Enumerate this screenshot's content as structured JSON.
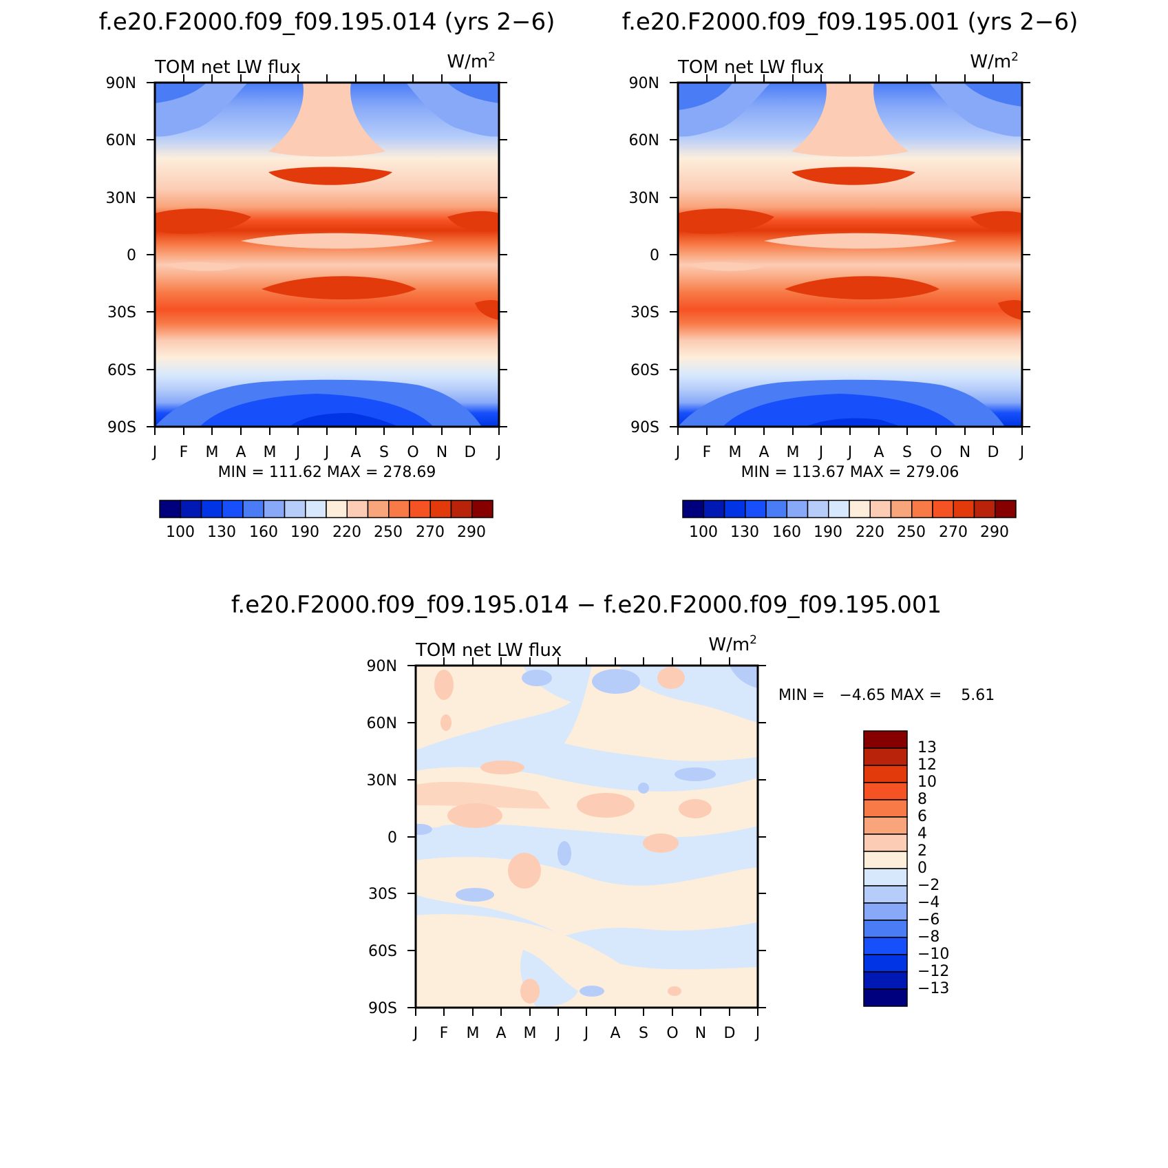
{
  "chart_data": [
    {
      "type": "heatmap",
      "title": "f.e20.F2000.f09_f09.195.014 (yrs 2−6)",
      "variable": "TOM net LW flux",
      "units_base": "W/m",
      "units_sup": "2",
      "x_tick_labels": [
        "J",
        "F",
        "M",
        "A",
        "M",
        "J",
        "J",
        "A",
        "S",
        "O",
        "N",
        "D",
        "J"
      ],
      "y_tick_labels": [
        "90N",
        "60N",
        "30N",
        "0",
        "30S",
        "60S",
        "90S"
      ],
      "ylim": [
        -90,
        90
      ],
      "stats": "MIN = 111.62 MAX = 278.69",
      "colorbar_orientation": "horizontal",
      "colorbar_labels": [
        "100",
        "130",
        "160",
        "190",
        "220",
        "250",
        "270",
        "290"
      ],
      "colors": [
        "#00007e",
        "#0018b4",
        "#0034e4",
        "#1750fa",
        "#4a7cf6",
        "#87a9f8",
        "#b6cdfa",
        "#d7e8fc",
        "#fdeedc",
        "#fcccb4",
        "#f9a57c",
        "#f77a47",
        "#f65324",
        "#e33a0b",
        "#b82309",
        "#860000"
      ],
      "lat_profile": [
        {
          "lat": 90,
          "value": 150
        },
        {
          "lat": 75,
          "value": 170
        },
        {
          "lat": 60,
          "value": 195
        },
        {
          "lat": 45,
          "value": 218
        },
        {
          "lat": 35,
          "value": 240
        },
        {
          "lat": 22,
          "value": 270
        },
        {
          "lat": 15,
          "value": 278
        },
        {
          "lat": 5,
          "value": 245
        },
        {
          "lat": -5,
          "value": 238
        },
        {
          "lat": -15,
          "value": 268
        },
        {
          "lat": -25,
          "value": 262
        },
        {
          "lat": -35,
          "value": 245
        },
        {
          "lat": -48,
          "value": 220
        },
        {
          "lat": -60,
          "value": 195
        },
        {
          "lat": -72,
          "value": 160
        },
        {
          "lat": -85,
          "value": 125
        }
      ]
    },
    {
      "type": "heatmap",
      "title": "f.e20.F2000.f09_f09.195.001 (yrs 2−6)",
      "variable": "TOM net LW flux",
      "units_base": "W/m",
      "units_sup": "2",
      "x_tick_labels": [
        "J",
        "F",
        "M",
        "A",
        "M",
        "J",
        "J",
        "A",
        "S",
        "O",
        "N",
        "D",
        "J"
      ],
      "y_tick_labels": [
        "90N",
        "60N",
        "30N",
        "0",
        "30S",
        "60S",
        "90S"
      ],
      "ylim": [
        -90,
        90
      ],
      "stats": "MIN = 113.67 MAX = 279.06",
      "colorbar_orientation": "horizontal",
      "colorbar_labels": [
        "100",
        "130",
        "160",
        "190",
        "220",
        "250",
        "270",
        "290"
      ],
      "colors": [
        "#00007e",
        "#0018b4",
        "#0034e4",
        "#1750fa",
        "#4a7cf6",
        "#87a9f8",
        "#b6cdfa",
        "#d7e8fc",
        "#fdeedc",
        "#fcccb4",
        "#f9a57c",
        "#f77a47",
        "#f65324",
        "#e33a0b",
        "#b82309",
        "#860000"
      ],
      "lat_profile": [
        {
          "lat": 90,
          "value": 150
        },
        {
          "lat": 75,
          "value": 170
        },
        {
          "lat": 60,
          "value": 195
        },
        {
          "lat": 45,
          "value": 218
        },
        {
          "lat": 35,
          "value": 240
        },
        {
          "lat": 22,
          "value": 270
        },
        {
          "lat": 15,
          "value": 278
        },
        {
          "lat": 5,
          "value": 245
        },
        {
          "lat": -5,
          "value": 238
        },
        {
          "lat": -15,
          "value": 268
        },
        {
          "lat": -25,
          "value": 262
        },
        {
          "lat": -35,
          "value": 245
        },
        {
          "lat": -48,
          "value": 220
        },
        {
          "lat": -60,
          "value": 195
        },
        {
          "lat": -72,
          "value": 160
        },
        {
          "lat": -85,
          "value": 125
        }
      ]
    },
    {
      "type": "heatmap",
      "title": "f.e20.F2000.f09_f09.195.014 − f.e20.F2000.f09_f09.195.001",
      "variable": "TOM net LW flux",
      "units_base": "W/m",
      "units_sup": "2",
      "x_tick_labels": [
        "J",
        "F",
        "M",
        "A",
        "M",
        "J",
        "J",
        "A",
        "S",
        "O",
        "N",
        "D",
        "J"
      ],
      "y_tick_labels": [
        "90N",
        "60N",
        "30N",
        "0",
        "30S",
        "60S",
        "90S"
      ],
      "ylim": [
        -90,
        90
      ],
      "stats": "MIN =   −4.65 MAX =    5.61",
      "colorbar_orientation": "vertical",
      "colorbar_labels": [
        "13",
        "12",
        "10",
        "8",
        "6",
        "4",
        "2",
        "0",
        "−2",
        "−4",
        "−6",
        "−8",
        "−10",
        "−12",
        "−13"
      ],
      "colors": [
        "#860000",
        "#b82309",
        "#e33a0b",
        "#f65324",
        "#f77a47",
        "#f9a57c",
        "#fcccb4",
        "#fdeedc",
        "#d7e8fc",
        "#b6cdfa",
        "#87a9f8",
        "#4a7cf6",
        "#1750fa",
        "#0034e4",
        "#0018b4",
        "#00007e"
      ]
    }
  ]
}
